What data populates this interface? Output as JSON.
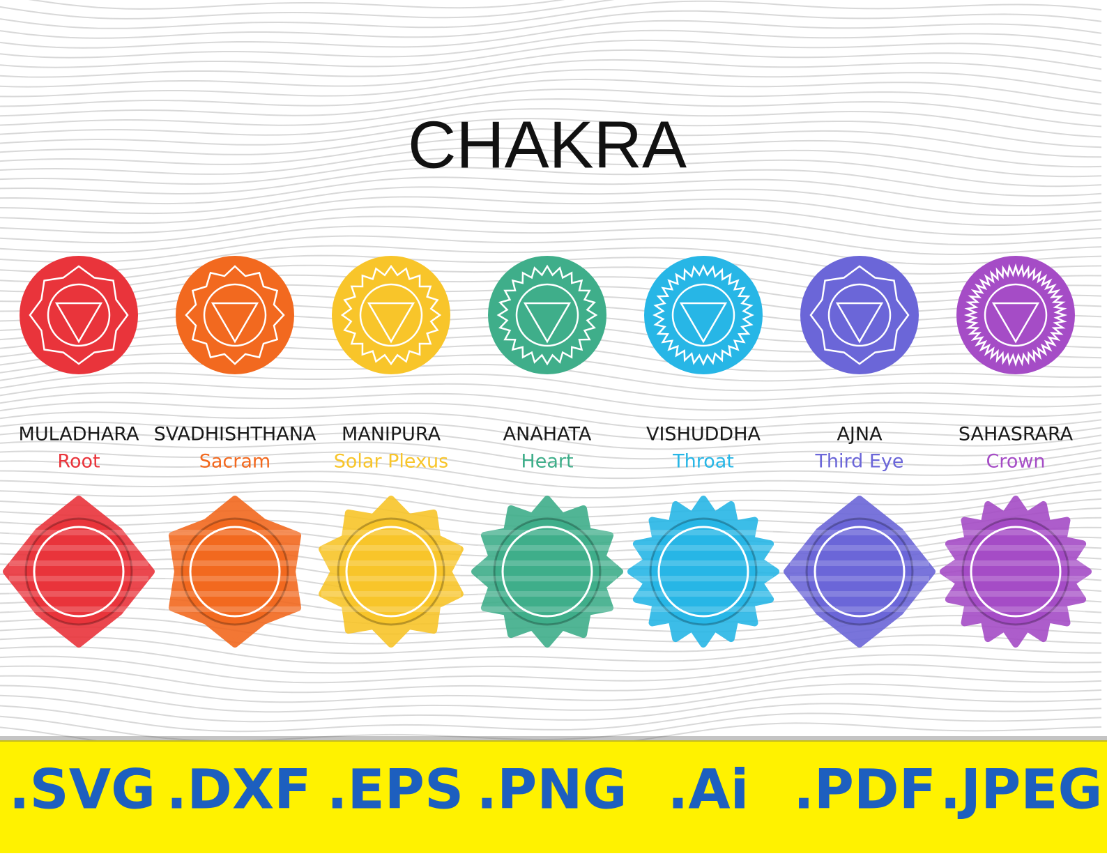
{
  "title": "CHAKRA",
  "chakras": [
    {
      "name": "MULADHARA",
      "meaning": "Root",
      "color": "#e9343b"
    },
    {
      "name": "SVADHISHTHANA",
      "meaning": "Sacram",
      "color": "#f2691f"
    },
    {
      "name": "MANIPURA",
      "meaning": "Solar Plexus",
      "color": "#f8c52a"
    },
    {
      "name": "ANAHATA",
      "meaning": "Heart",
      "color": "#3fae8a"
    },
    {
      "name": "VISHUDDHA",
      "meaning": "Throat",
      "color": "#27b6e6"
    },
    {
      "name": "AJNA",
      "meaning": "Third Eye",
      "color": "#6b66d8"
    },
    {
      "name": "SAHASRARA",
      "meaning": "Crown",
      "color": "#a54cc6"
    }
  ],
  "formats": [
    ".SVG",
    ".DXF",
    ".EPS",
    ".PNG",
    ".Ai",
    ".PDF",
    ".JPEG"
  ]
}
